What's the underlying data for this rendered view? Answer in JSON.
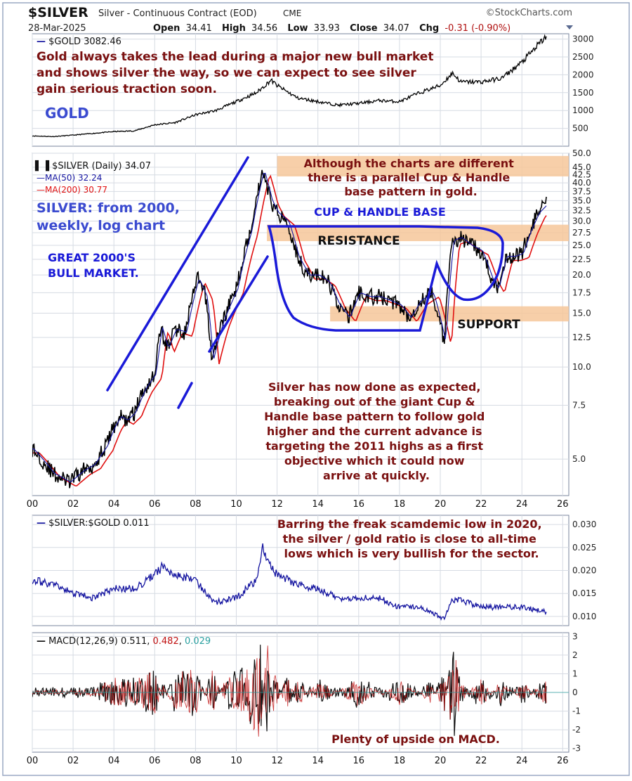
{
  "header": {
    "symbol": "$SILVER",
    "description": "Silver - Continuous Contract (EOD)",
    "exchange": "CME",
    "brand": "©StockCharts.com",
    "date": "28-Mar-2025",
    "ohlc": {
      "open_label": "Open",
      "open": "34.41",
      "high_label": "High",
      "high": "34.56",
      "low_label": "Low",
      "low": "33.93",
      "close_label": "Close",
      "close": "34.07",
      "chg_label": "Chg",
      "chg": "-0.31 (-0.90%)"
    }
  },
  "colors": {
    "frame": "#9aa9c4",
    "panel_bg": "#ffffff",
    "annotation": "#7a1010",
    "trendline": "#1a1ad8",
    "zone": "#f6c79a",
    "price_line": "#000000",
    "ma50": "#1414a0",
    "ma200": "#e01010",
    "grid": "#d6dbe3"
  },
  "chart_data": [
    {
      "id": "gold",
      "type": "line",
      "legend": "$GOLD 3082.46",
      "yticks": [
        500,
        1000,
        1500,
        2000,
        2500,
        3000
      ],
      "ylim": [
        0,
        3150
      ],
      "annotation": [
        "Gold always takes the lead during a major new bull market",
        "and shows silver the way, so we can expect to see silver",
        "gain serious traction soon."
      ],
      "label": "GOLD",
      "x": [
        2000,
        2001,
        2002,
        2003,
        2004,
        2005,
        2006,
        2007,
        2008,
        2009,
        2010,
        2011,
        2011.7,
        2012,
        2013,
        2014,
        2015,
        2016,
        2017,
        2018,
        2019,
        2020,
        2020.6,
        2021,
        2022,
        2023,
        2024,
        2025.2
      ],
      "y": [
        290,
        270,
        310,
        360,
        410,
        430,
        600,
        660,
        880,
        1000,
        1250,
        1500,
        1850,
        1700,
        1350,
        1250,
        1150,
        1200,
        1280,
        1250,
        1500,
        1700,
        2050,
        1800,
        1800,
        1900,
        2350,
        3082
      ]
    },
    {
      "id": "silver",
      "type": "line",
      "legend": "$SILVER (Daily) 34.07",
      "ma50": "MA(50) 32.24",
      "ma200": "MA(200) 30.77",
      "scale": "log",
      "yticks": [
        5.0,
        7.5,
        10.0,
        12.5,
        15.0,
        17.5,
        20.0,
        22.5,
        25.0,
        27.5,
        30.0,
        32.5,
        35.0,
        37.5,
        40.0,
        42.5,
        45.0,
        50.0
      ],
      "ylim": [
        3.8,
        50
      ],
      "xticks": [
        "00",
        "02",
        "04",
        "06",
        "08",
        "10",
        "12",
        "14",
        "16",
        "18",
        "20",
        "22",
        "24",
        "26"
      ],
      "x": [
        2000,
        2001,
        2001.8,
        2002.5,
        2003,
        2003.6,
        2004,
        2004.3,
        2004.6,
        2005,
        2005.5,
        2006,
        2006.3,
        2006.6,
        2007,
        2007.5,
        2008.1,
        2008.5,
        2008.8,
        2009.3,
        2010,
        2010.7,
        2011.3,
        2011.7,
        2012,
        2012.5,
        2013,
        2013.5,
        2014,
        2014.5,
        2015,
        2015.5,
        2016,
        2016.5,
        2017,
        2017.5,
        2018,
        2018.5,
        2019,
        2019.6,
        2020.2,
        2020.6,
        2021,
        2021.5,
        2022,
        2022.5,
        2022.8,
        2023.2,
        2023.6,
        2024,
        2024.4,
        2024.8,
        2025.2
      ],
      "y": [
        5.4,
        4.5,
        4.2,
        4.6,
        4.8,
        5.5,
        6.4,
        6.9,
        6.7,
        7.1,
        8.5,
        9.5,
        13.5,
        11.5,
        13.3,
        13.0,
        19.5,
        17.0,
        10.5,
        14.0,
        18.0,
        28.0,
        44.0,
        35.0,
        32.0,
        30.0,
        23.0,
        20.0,
        20.0,
        19.0,
        16.0,
        14.5,
        17.5,
        17.0,
        17.0,
        16.5,
        16.0,
        14.5,
        16.5,
        17.5,
        12.0,
        26.0,
        26.5,
        25.0,
        24.0,
        19.5,
        18.0,
        23.0,
        23.0,
        23.5,
        28.0,
        32.0,
        34.07
      ],
      "annotations": {
        "title": [
          "SILVER: from 2000,",
          "weekly, log chart"
        ],
        "bull": [
          "GREAT 2000'S",
          "BULL MARKET."
        ],
        "parallel": [
          "Although the charts are different",
          "there is a parallel Cup & Handle",
          "base pattern in gold."
        ],
        "cup": "CUP & HANDLE BASE",
        "resistance": "RESISTANCE",
        "support": "SUPPORT",
        "comment": [
          "Silver has now done as expected,",
          "breaking out of the giant Cup &",
          "Handle base pattern to follow gold",
          "higher and the current advance is",
          "targeting the 2011 highs as a first",
          "objective which it could now",
          "arrive at quickly."
        ]
      },
      "zones": [
        {
          "name": "top",
          "range": [
            42,
            49
          ],
          "x_from": 2012
        },
        {
          "name": "resistance",
          "range": [
            25.8,
            29.2
          ],
          "x_from": 2011.5
        },
        {
          "name": "support",
          "range": [
            14.1,
            15.8
          ],
          "x_from": 2014.6
        }
      ]
    },
    {
      "id": "ratio",
      "type": "line",
      "legend": "$SILVER:$GOLD 0.011",
      "yticks": [
        0.01,
        0.015,
        0.02,
        0.025,
        0.03
      ],
      "ylim": [
        0.008,
        0.032
      ],
      "annotation": [
        "Barring the freak scamdemic low in 2020,",
        "the silver / gold ratio is close to all-time",
        "lows which is very bullish for the sector."
      ],
      "x": [
        2000,
        2001,
        2002,
        2003,
        2004,
        2005,
        2006,
        2006.4,
        2007,
        2008,
        2008.9,
        2010,
        2011,
        2011.3,
        2011.8,
        2012,
        2013,
        2014,
        2015,
        2016,
        2017,
        2018,
        2019,
        2020.2,
        2020.6,
        2021,
        2022,
        2023,
        2024,
        2025.2
      ],
      "y": [
        0.018,
        0.017,
        0.015,
        0.014,
        0.016,
        0.016,
        0.019,
        0.021,
        0.019,
        0.018,
        0.013,
        0.014,
        0.018,
        0.025,
        0.02,
        0.019,
        0.017,
        0.016,
        0.014,
        0.014,
        0.014,
        0.012,
        0.012,
        0.0095,
        0.0135,
        0.0135,
        0.012,
        0.012,
        0.012,
        0.011
      ]
    },
    {
      "id": "macd",
      "type": "line",
      "legend_prefix": "MACD(12,26,9) 0.511, ",
      "legend_signal": "0.482",
      "legend_sep": ", ",
      "legend_hist": "0.029",
      "yticks": [
        -3,
        -2,
        -1,
        0,
        1,
        2,
        3
      ],
      "ylim": [
        -3.2,
        3.2
      ],
      "annotation": "Plenty of upside on MACD.",
      "xticks": [
        "00",
        "02",
        "04",
        "06",
        "08",
        "10",
        "12",
        "14",
        "16",
        "18",
        "20",
        "22",
        "24",
        "26"
      ],
      "x": [
        2000,
        2003,
        2004,
        2005,
        2006,
        2006.4,
        2007,
        2008,
        2008.8,
        2009.5,
        2010.5,
        2011.2,
        2011.5,
        2011.8,
        2012.5,
        2013,
        2014,
        2016,
        2018,
        2019.5,
        2020.2,
        2020.6,
        2021,
        2022,
        2023,
        2024,
        2025.2
      ],
      "y": [
        0,
        0.1,
        0.6,
        0.5,
        1.0,
        -0.4,
        0.8,
        1.0,
        -1.0,
        0.6,
        1.0,
        2.3,
        -2.5,
        1.0,
        -0.8,
        0.6,
        -0.5,
        0.6,
        -0.5,
        0.4,
        -0.8,
        2.2,
        0.4,
        -0.6,
        0.5,
        -0.4,
        0.51
      ]
    }
  ]
}
